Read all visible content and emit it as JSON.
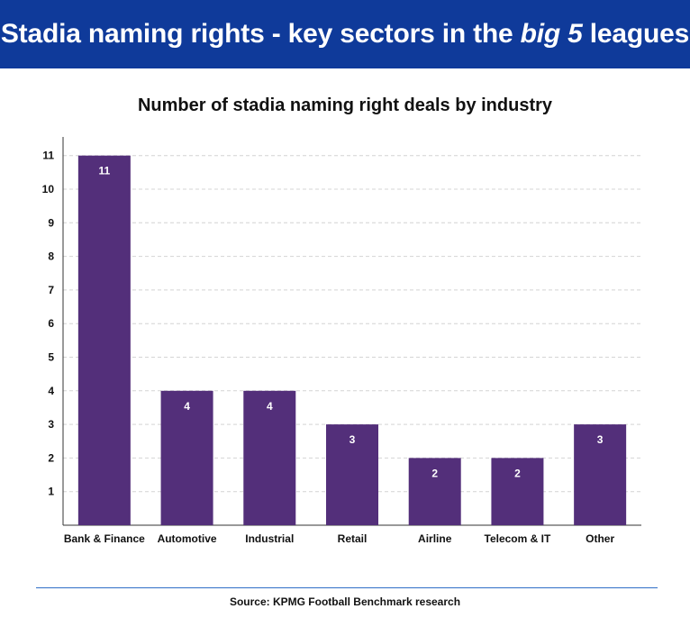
{
  "header": {
    "title_pre": "Stadia naming rights - key sectors in the ",
    "title_em": "big 5",
    "title_post": " leagues"
  },
  "colors": {
    "banner": "#0f3a9a",
    "bar": "#532f7a",
    "bar_label": "#ffffff",
    "grid": "#d4d4d4",
    "axis": "#333333",
    "rule": "#2f6fc7"
  },
  "footer": {
    "source": "Source: KPMG Football Benchmark research"
  },
  "chart_data": {
    "type": "bar",
    "title": "Number of stadia naming right deals by industry",
    "xlabel": "",
    "ylabel": "",
    "categories": [
      "Bank & Finance",
      "Automotive",
      "Industrial",
      "Retail",
      "Airline",
      "Telecom & IT",
      "Other"
    ],
    "values": [
      11,
      4,
      4,
      3,
      2,
      2,
      3
    ],
    "ylim": [
      0,
      11
    ],
    "yticks": [
      1,
      2,
      3,
      4,
      5,
      6,
      7,
      8,
      9,
      10,
      11
    ],
    "grid": true,
    "data_labels": true,
    "legend": "none"
  }
}
